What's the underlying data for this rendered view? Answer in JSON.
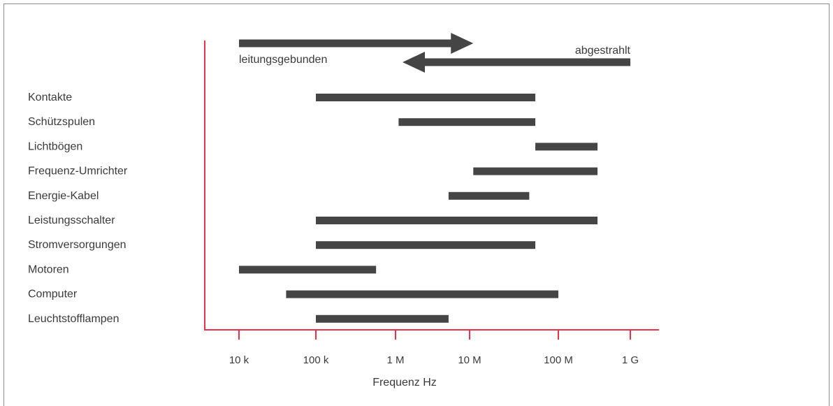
{
  "chart_data": {
    "type": "range-bar",
    "xlabel": "Frequenz Hz",
    "xscale": "log",
    "xlim": [
      10000,
      1000000000
    ],
    "x_ticks": [
      {
        "value": 10000,
        "label": "10 k"
      },
      {
        "value": 100000,
        "label": "100 k"
      },
      {
        "value": 1000000,
        "label": "1 M"
      },
      {
        "value": 10000000,
        "label": "10 M"
      },
      {
        "value": 100000000,
        "label": "100 M"
      },
      {
        "value": 1000000000,
        "label": "1 G"
      }
    ],
    "categories": [
      "Kontakte",
      "Schützspulen",
      "Lichtbögen",
      "Frequenz-Umrichter",
      "Energie-Kabel",
      "Leistungsschalter",
      "Stromversorgungen",
      "Motoren",
      "Computer",
      "Leuchtstofflampen"
    ],
    "ranges": [
      [
        100000,
        55000000
      ],
      [
        1100000,
        55000000
      ],
      [
        55000000,
        350000000
      ],
      [
        11000000,
        350000000
      ],
      [
        47000000,
        5200000
      ],
      [
        100000,
        350000000
      ],
      [
        100000,
        55000000
      ],
      [
        10000,
        570000
      ],
      [
        41000,
        100000000
      ],
      [
        100000,
        5200000
      ]
    ],
    "annotations": {
      "conducted": {
        "label": "leitungsgebunden",
        "from": 10000,
        "to": 11000000,
        "direction": "right"
      },
      "radiated": {
        "label": "abgestrahlt",
        "from": 1000000000,
        "to": 1000000,
        "direction": "left"
      }
    },
    "colors": {
      "bars": "#454545",
      "axis": "#e8324a",
      "text": "#3a3a3a"
    }
  }
}
